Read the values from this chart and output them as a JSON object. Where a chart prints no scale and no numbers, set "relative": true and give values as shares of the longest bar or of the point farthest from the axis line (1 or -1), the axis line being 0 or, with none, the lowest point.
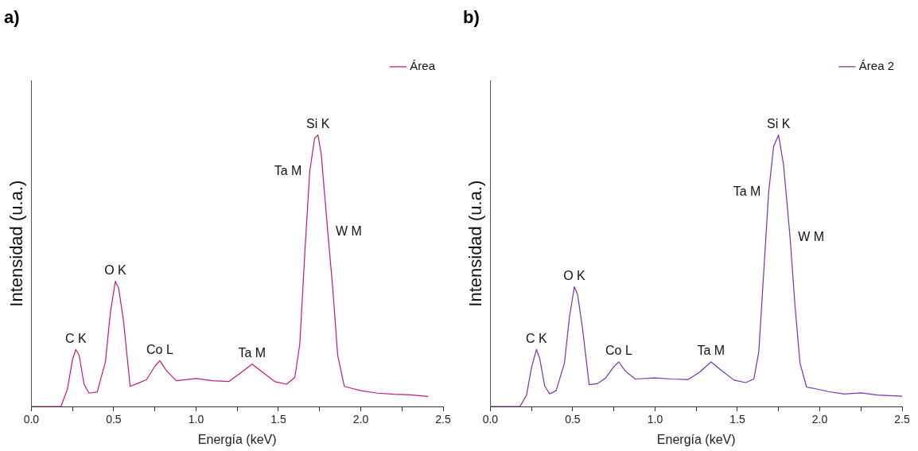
{
  "chart_data": [
    {
      "type": "line",
      "title": "a)",
      "xlabel": "Energía (keV)",
      "ylabel": "Intensidad (u.a.)",
      "relative": true,
      "legend": "top right",
      "xlim": [
        0,
        2.5
      ],
      "xticks": [
        {
          "value": 0,
          "label": "0.0"
        },
        {
          "value": 0.25,
          "label": null
        },
        0.5,
        {
          "value": 0.75,
          "label": null
        },
        {
          "value": 1,
          "label": "1.0"
        },
        {
          "value": 1.25,
          "label": null
        },
        1.5,
        {
          "value": 1.75,
          "label": null
        },
        {
          "value": 2,
          "label": "2.0"
        },
        {
          "value": 2.25,
          "label": null
        },
        2.5
      ],
      "series": [
        {
          "name": "Área",
          "color": "#c2187c",
          "x": [
            0,
            0.18,
            0.22,
            0.25,
            0.27,
            0.29,
            0.32,
            0.35,
            0.4,
            0.45,
            0.48,
            0.51,
            0.53,
            0.56,
            0.6,
            0.65,
            0.7,
            0.75,
            0.78,
            0.82,
            0.88,
            1.0,
            1.1,
            1.2,
            1.27,
            1.34,
            1.4,
            1.48,
            1.55,
            1.6,
            1.63,
            1.66,
            1.69,
            1.72,
            1.74,
            1.76,
            1.8,
            1.83,
            1.86,
            1.9,
            1.95,
            2.0,
            2.1,
            2.2,
            2.3,
            2.41
          ],
          "values": [
            0,
            0,
            0.066,
            0.173,
            0.21,
            0.189,
            0.082,
            0.049,
            0.053,
            0.165,
            0.346,
            0.461,
            0.436,
            0.313,
            0.074,
            0.086,
            0.099,
            0.148,
            0.169,
            0.132,
            0.095,
            0.103,
            0.095,
            0.092,
            0.123,
            0.156,
            0.128,
            0.091,
            0.082,
            0.107,
            0.23,
            0.56,
            0.864,
            0.988,
            1,
            0.93,
            0.642,
            0.436,
            0.189,
            0.074,
            0.066,
            0.058,
            0.049,
            0.045,
            0.043,
            0.037
          ]
        }
      ],
      "annotations": [
        {
          "text": "C K",
          "x": 0.27,
          "y": 0.21
        },
        {
          "text": "O K",
          "x": 0.51,
          "y": 0.461
        },
        {
          "text": "Co L",
          "x": 0.78,
          "y": 0.169
        },
        {
          "text": "Ta M",
          "x": 1.34,
          "y": 0.156
        },
        {
          "text": "Si K",
          "x": 1.74,
          "y": 1
        },
        {
          "text": "Ta M",
          "x": 1.69,
          "y": 0.864
        },
        {
          "text": "W M",
          "x": 1.8,
          "y": 0.642
        }
      ]
    },
    {
      "type": "line",
      "title": "b)",
      "xlabel": "Energía (keV)",
      "ylabel": "Intensidad (u.a.)",
      "relative": true,
      "legend": "top right",
      "xlim": [
        0,
        2.5
      ],
      "xticks": [
        {
          "value": 0,
          "label": "0.0"
        },
        {
          "value": 0.25,
          "label": null
        },
        0.5,
        {
          "value": 0.75,
          "label": null
        },
        {
          "value": 1,
          "label": "1.0"
        },
        {
          "value": 1.25,
          "label": null
        },
        1.5,
        {
          "value": 1.75,
          "label": null
        },
        {
          "value": 2,
          "label": "2.0"
        },
        {
          "value": 2.25,
          "label": null
        },
        2.5
      ],
      "series": [
        {
          "name": "Área 2",
          "color": "#7a30b4",
          "x": [
            0,
            0.18,
            0.22,
            0.25,
            0.28,
            0.3,
            0.33,
            0.36,
            0.4,
            0.45,
            0.48,
            0.51,
            0.53,
            0.56,
            0.6,
            0.65,
            0.7,
            0.75,
            0.78,
            0.82,
            0.88,
            1.0,
            1.1,
            1.2,
            1.27,
            1.34,
            1.4,
            1.48,
            1.55,
            1.6,
            1.63,
            1.66,
            1.69,
            1.72,
            1.75,
            1.78,
            1.82,
            1.85,
            1.88,
            1.92,
            1.97,
            2.05,
            2.15,
            2.25,
            2.35,
            2.5
          ],
          "values": [
            0,
            0,
            0.042,
            0.143,
            0.21,
            0.176,
            0.076,
            0.046,
            0.059,
            0.16,
            0.328,
            0.441,
            0.412,
            0.286,
            0.08,
            0.084,
            0.105,
            0.147,
            0.164,
            0.13,
            0.101,
            0.105,
            0.101,
            0.099,
            0.126,
            0.164,
            0.134,
            0.097,
            0.088,
            0.101,
            0.202,
            0.496,
            0.79,
            0.958,
            1,
            0.891,
            0.622,
            0.37,
            0.16,
            0.071,
            0.066,
            0.055,
            0.046,
            0.05,
            0.042,
            0.038
          ]
        }
      ],
      "annotations": [
        {
          "text": "C K",
          "x": 0.28,
          "y": 0.21
        },
        {
          "text": "O K",
          "x": 0.51,
          "y": 0.441
        },
        {
          "text": "Co L",
          "x": 0.78,
          "y": 0.164
        },
        {
          "text": "Ta M",
          "x": 1.34,
          "y": 0.164
        },
        {
          "text": "Si K",
          "x": 1.75,
          "y": 1
        },
        {
          "text": "Ta M",
          "x": 1.69,
          "y": 0.79
        },
        {
          "text": "W M",
          "x": 1.82,
          "y": 0.622
        }
      ]
    }
  ]
}
